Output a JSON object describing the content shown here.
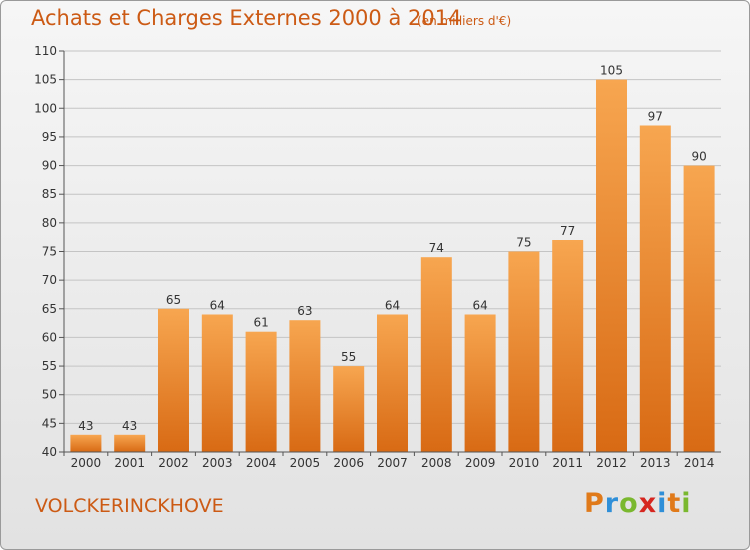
{
  "title": "Achats et Charges Externes 2000 à 2014",
  "subtitle": "(en milliers d'€)",
  "commune": "VOLCKERINCKHOVE",
  "brand": "Proxiti",
  "colors": {
    "text": "#cc5a14",
    "bar_light": "#f7a650",
    "bar_dark": "#d86a14",
    "brand_letters": [
      "#e07a1a",
      "#2f8fd8",
      "#7ab82f",
      "#d6261f",
      "#2f8fd8",
      "#e07a1a",
      "#7ab82f"
    ]
  },
  "chart_data": {
    "type": "bar",
    "categories": [
      "2000",
      "2001",
      "2002",
      "2003",
      "2004",
      "2005",
      "2006",
      "2007",
      "2008",
      "2009",
      "2010",
      "2011",
      "2012",
      "2013",
      "2014"
    ],
    "values": [
      43,
      43,
      65,
      64,
      61,
      63,
      55,
      64,
      74,
      64,
      75,
      77,
      105,
      97,
      90
    ],
    "ylim": [
      40,
      110
    ],
    "yticks": [
      40,
      45,
      50,
      55,
      60,
      65,
      70,
      75,
      80,
      85,
      90,
      95,
      100,
      105,
      110
    ],
    "grid": true,
    "data_labels": true
  }
}
